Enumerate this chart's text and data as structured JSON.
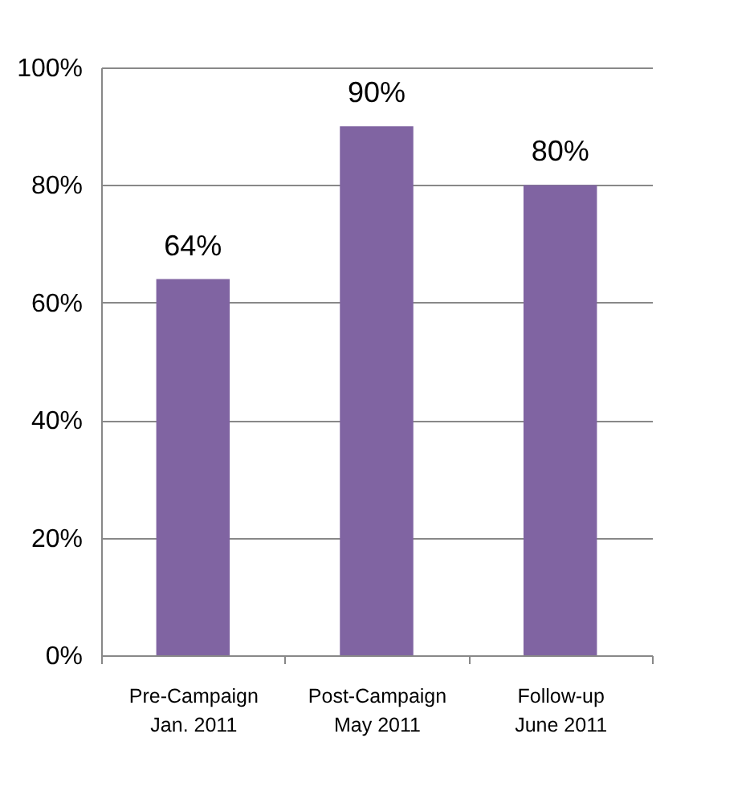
{
  "chart_data": {
    "type": "bar",
    "categories": [
      "Pre-Campaign\nJan. 2011",
      "Post-Campaign\nMay 2011",
      "Follow-up\nJune 2011"
    ],
    "values": [
      64,
      90,
      80
    ],
    "color": "#8064a2",
    "value_labels": [
      "64%",
      "90%",
      "80%"
    ],
    "ylim": [
      0,
      100
    ],
    "yticks": [
      {
        "value": 0,
        "label": "0%"
      },
      {
        "value": 20,
        "label": "20%"
      },
      {
        "value": 40,
        "label": "40%"
      },
      {
        "value": 60,
        "label": "60%"
      },
      {
        "value": 80,
        "label": "80%"
      },
      {
        "value": 100,
        "label": "100%"
      }
    ],
    "grid": "y"
  }
}
